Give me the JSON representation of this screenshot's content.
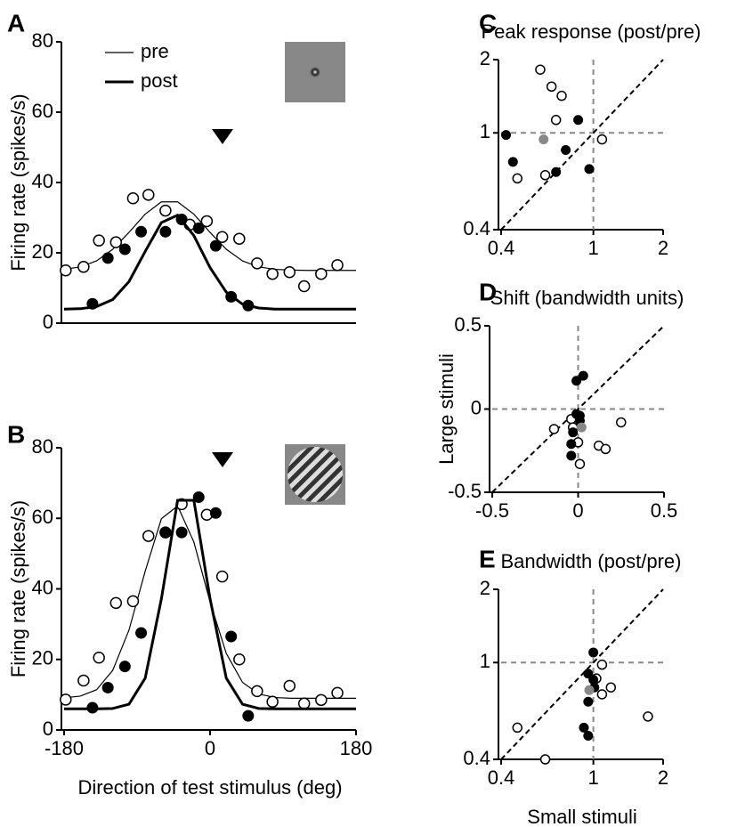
{
  "chart_data": [
    {
      "type": "line",
      "label": "A",
      "ylabel": "Firing rate (spikes/s)",
      "legend": true,
      "xlim": [
        -180,
        180
      ],
      "ylim": [
        0,
        80
      ],
      "yticks": [
        0,
        20,
        40,
        60,
        80
      ],
      "fit_x": [
        -180,
        -160,
        -140,
        -120,
        -100,
        -80,
        -60,
        -40,
        -20,
        0,
        20,
        40,
        60,
        80,
        100,
        120,
        140,
        160,
        180
      ],
      "series": [
        {
          "name": "pre",
          "color": "#000000",
          "marker": "open",
          "line_width": 1.2,
          "x": [
            -178,
            -156,
            -137,
            -116,
            -95,
            -76,
            -55,
            -25,
            -4,
            15,
            36,
            58,
            77,
            98,
            116,
            137,
            157
          ],
          "values": [
            15,
            16,
            23.5,
            23,
            35.5,
            36.5,
            32,
            28,
            29,
            24.5,
            24,
            17,
            14,
            14.5,
            10.5,
            14,
            16.5
          ],
          "fit": [
            15.3,
            16.0,
            17.7,
            21.0,
            25.8,
            31.0,
            34.5,
            34.5,
            31.0,
            25.8,
            21.0,
            17.7,
            16.0,
            15.3,
            15.1,
            15.0,
            15.0,
            15.0,
            15.0
          ]
        },
        {
          "name": "post",
          "color": "#000000",
          "marker": "filled",
          "line_width": 3,
          "x": [
            -145,
            -126,
            -105,
            -85,
            -55,
            -35,
            -14,
            7,
            26,
            47
          ],
          "values": [
            5.5,
            18.5,
            21,
            26,
            26,
            29.5,
            27,
            22,
            7.5,
            5
          ],
          "fit": [
            4.0,
            4.1,
            4.7,
            6.7,
            11.8,
            20.4,
            28.6,
            30.7,
            24.9,
            15.8,
            8.8,
            5.4,
            4.3,
            4.0,
            4.0,
            4.0,
            4.0,
            4.0,
            4.0
          ]
        }
      ]
    },
    {
      "type": "line",
      "label": "B",
      "ylabel": "Firing rate (spikes/s)",
      "xlabel": "Direction of test stimulus (deg)",
      "legend": false,
      "xlim": [
        -180,
        180
      ],
      "ylim": [
        0,
        80
      ],
      "yticks": [
        0,
        20,
        40,
        60,
        80
      ],
      "xticks": [
        -180,
        0,
        180
      ],
      "fit_x": [
        -180,
        -160,
        -140,
        -120,
        -100,
        -80,
        -60,
        -40,
        -20,
        0,
        20,
        40,
        60,
        80,
        100,
        120,
        140,
        160,
        180
      ],
      "series": [
        {
          "color": "#000000",
          "marker": "open",
          "line_width": 1.2,
          "x": [
            -178,
            -156,
            -137,
            -116,
            -95,
            -76,
            -55,
            -35,
            -4,
            15,
            36,
            58,
            77,
            98,
            116,
            137,
            157
          ],
          "values": [
            8.6,
            14,
            20.5,
            36,
            36.5,
            55,
            56,
            64,
            61,
            43.5,
            20,
            11,
            8,
            12.5,
            7.5,
            8.5,
            10.5
          ],
          "fit": [
            9.1,
            9.6,
            11.4,
            16.9,
            28.3,
            45.0,
            59.9,
            63.5,
            53.3,
            36.3,
            21.7,
            13.5,
            10.2,
            9.2,
            9.0,
            9.0,
            9.0,
            9.0,
            9.0
          ]
        },
        {
          "color": "#000000",
          "marker": "filled",
          "line_width": 3,
          "x": [
            -145,
            -126,
            -105,
            -85,
            -55,
            -35,
            -14,
            7,
            26,
            47
          ],
          "values": [
            6.3,
            12,
            18,
            27.5,
            56,
            56,
            66,
            61.5,
            26.5,
            4
          ],
          "fit": [
            6.0,
            6.0,
            6.0,
            6.1,
            7.3,
            14.7,
            37.2,
            65.1,
            65.1,
            37.2,
            14.7,
            7.3,
            6.1,
            6.0,
            6.0,
            6.0,
            6.0,
            6.0,
            6.0
          ]
        }
      ]
    },
    {
      "type": "scatter",
      "label": "C",
      "title": "Peak response (post/pre)",
      "log": true,
      "diagonal": true,
      "xref": 1,
      "yref": 1,
      "xlim": [
        0.4,
        2
      ],
      "ylim": [
        0.4,
        2
      ],
      "xticks": [
        0.4,
        1,
        2
      ],
      "yticks": [
        0.4,
        1,
        2
      ],
      "series": [
        {
          "color": "#000000",
          "marker": "open",
          "x": [
            0.59,
            0.66,
            0.73,
            0.69,
            0.47,
            0.62,
            1.09
          ],
          "values": [
            1.82,
            1.55,
            1.42,
            1.13,
            0.65,
            0.67,
            0.94
          ]
        },
        {
          "color": "#000000",
          "marker": "filled",
          "x": [
            0.42,
            0.45,
            0.86,
            0.76,
            0.69,
            0.96
          ],
          "values": [
            0.98,
            0.76,
            1.13,
            0.85,
            0.69,
            0.71
          ]
        },
        {
          "color": "#888888",
          "marker": "filled",
          "x": [
            0.61
          ],
          "values": [
            0.94
          ]
        }
      ]
    },
    {
      "type": "scatter",
      "label": "D",
      "title": "Shift (bandwidth units)",
      "ylabel": "Large stimuli",
      "log": false,
      "diagonal": true,
      "xref": 0,
      "yref": 0,
      "xlim": [
        -0.5,
        0.5
      ],
      "ylim": [
        -0.5,
        0.5
      ],
      "xticks": [
        -0.5,
        0,
        0.5
      ],
      "yticks": [
        -0.5,
        0,
        0.5
      ],
      "series": [
        {
          "color": "#000000",
          "marker": "open",
          "x": [
            -0.14,
            -0.04,
            0,
            0.01,
            0.25,
            0.12,
            0.16,
            -0.03
          ],
          "values": [
            -0.12,
            -0.06,
            -0.2,
            -0.33,
            -0.08,
            -0.22,
            -0.24,
            -0.11
          ]
        },
        {
          "color": "#000000",
          "marker": "filled",
          "x": [
            -0.01,
            0.03,
            -0.01,
            0.01,
            -0.03,
            -0.04,
            -0.04,
            0.01
          ],
          "values": [
            0.17,
            0.2,
            -0.03,
            -0.07,
            -0.14,
            -0.21,
            -0.28,
            -0.04
          ]
        },
        {
          "color": "#888888",
          "marker": "filled",
          "x": [
            0.02
          ],
          "values": [
            -0.11
          ]
        }
      ]
    },
    {
      "type": "scatter",
      "label": "E",
      "title": "Bandwidth (post/pre)",
      "xlabel": "Small stimuli",
      "log": true,
      "diagonal": true,
      "xref": 1,
      "yref": 1,
      "xlim": [
        0.4,
        2
      ],
      "ylim": [
        0.4,
        2
      ],
      "xticks": [
        0.4,
        1,
        2
      ],
      "yticks": [
        0.4,
        1,
        2
      ],
      "series": [
        {
          "color": "#000000",
          "marker": "open",
          "x": [
            1.09,
            1.03,
            1.19,
            1.09,
            0.47,
            0.62,
            1.72
          ],
          "values": [
            0.98,
            0.86,
            0.79,
            0.74,
            0.54,
            0.4,
            0.6
          ]
        },
        {
          "color": "#000000",
          "marker": "filled",
          "x": [
            1.0,
            0.95,
            1.01,
            0.95,
            0.91,
            0.95,
            1.0
          ],
          "values": [
            1.1,
            0.9,
            0.79,
            0.69,
            0.54,
            0.5,
            0.85
          ]
        },
        {
          "color": "#888888",
          "marker": "filled",
          "x": [
            0.96
          ],
          "values": [
            0.77
          ]
        }
      ]
    }
  ]
}
